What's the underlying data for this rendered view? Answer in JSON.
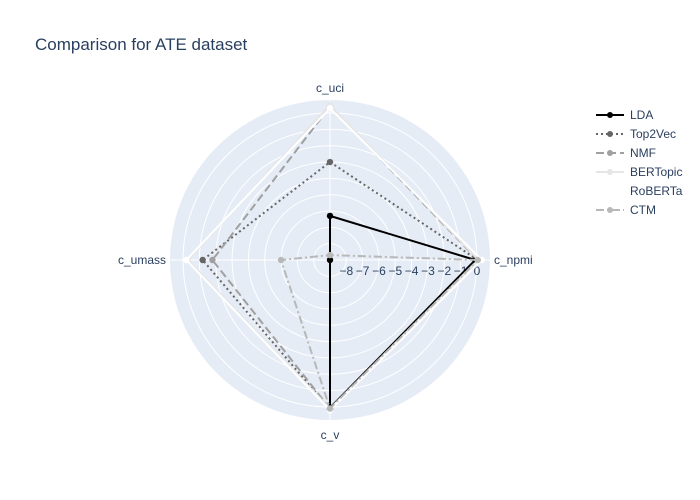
{
  "chart_data": {
    "type": "radar",
    "title": "Comparison for ATE dataset",
    "axes": [
      "c_npmi",
      "c_uci",
      "c_umass",
      "c_v"
    ],
    "radial_range": [
      -9,
      0.8
    ],
    "radial_ticks": [
      "−8",
      "−7",
      "−6",
      "−5",
      "−4",
      "−3",
      "−2",
      "−1",
      "0"
    ],
    "radial_tick_values": [
      -8,
      -7,
      -6,
      -5,
      -4,
      -3,
      -2,
      -1,
      0
    ],
    "series": [
      {
        "name": "LDA",
        "values": [
          -0.1,
          -6.3,
          -9.0,
          0.05
        ],
        "color": "#000000",
        "dash": "solid",
        "marker": true,
        "width": 2
      },
      {
        "name": "Top2Vec",
        "values": [
          0.05,
          -3.0,
          -1.2,
          0.15
        ],
        "color": "#666666",
        "dash": "2,3",
        "marker": true,
        "width": 2
      },
      {
        "name": "NMF",
        "values": [
          0.05,
          0.4,
          -1.8,
          0.1
        ],
        "color": "#a0a0a0",
        "dash": "8,4",
        "marker": true,
        "width": 2
      },
      {
        "name": "BERTopic",
        "values": [
          0.1,
          0.5,
          -0.3,
          0.1
        ],
        "color": "#e6e6e6",
        "dash": "solid",
        "marker": true,
        "width": 2
      },
      {
        "name": "RoBERTa",
        "values": [
          0.3,
          0.3,
          -0.2,
          0.2
        ],
        "color": "#ffffff",
        "dash": "solid",
        "marker": true,
        "width": 2
      },
      {
        "name": "CTM",
        "values": [
          0.05,
          -8.7,
          -6.0,
          0.1
        ],
        "color": "#b8b8b8",
        "dash": "8,3,2,3",
        "marker": true,
        "width": 2
      }
    ],
    "grid": true,
    "legend_position": "top-right",
    "background": "#e5ecf6"
  }
}
